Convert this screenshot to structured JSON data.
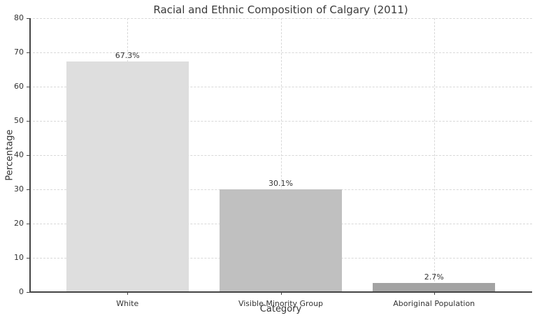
{
  "chart_data": {
    "type": "bar",
    "title": "Racial and Ethnic Composition of Calgary (2011)",
    "xlabel": "Category",
    "ylabel": "Percentage",
    "categories": [
      "White",
      "Visible Minority Group",
      "Aboriginal Population"
    ],
    "values": [
      67.3,
      30.1,
      2.7
    ],
    "value_labels": [
      "67.3%",
      "30.1%",
      "2.7%"
    ],
    "colors": [
      "#dedede",
      "#c0c0c0",
      "#a3a3a3"
    ],
    "ylim": [
      0,
      80
    ],
    "yticks": [
      0,
      10,
      20,
      30,
      40,
      50,
      60,
      70,
      80
    ],
    "grid": true,
    "legend": null
  }
}
